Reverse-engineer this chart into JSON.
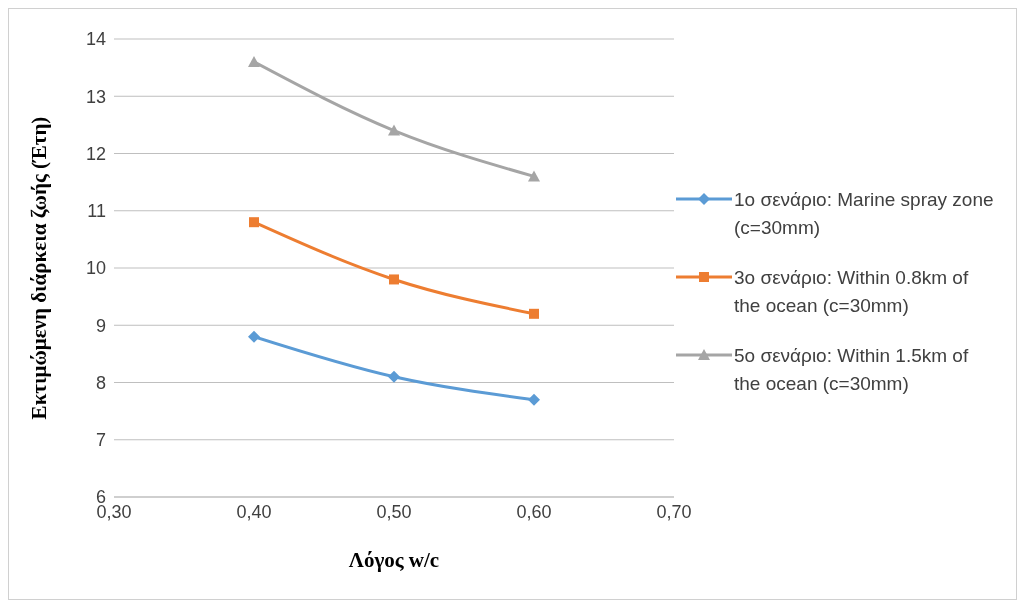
{
  "chart_data": {
    "type": "line",
    "xlabel": "Λόγος w/c",
    "ylabel": "Εκτιμώμενη διάρκεια ζωής (Έτη)",
    "x": [
      0.4,
      0.5,
      0.6
    ],
    "series": [
      {
        "name": "1ο σενάριο: Marine spray zone (c=30mm)",
        "color": "#5b9bd5",
        "marker": "diamond",
        "values": [
          8.8,
          8.1,
          7.7
        ]
      },
      {
        "name": "3ο σενάριο: Within 0.8km of the ocean (c=30mm)",
        "color": "#ed7d31",
        "marker": "square",
        "values": [
          10.8,
          9.8,
          9.2
        ]
      },
      {
        "name": "5ο σενάριο: Within 1.5km of the ocean (c=30mm)",
        "color": "#a5a5a5",
        "marker": "triangle",
        "values": [
          13.6,
          12.4,
          11.6
        ]
      }
    ],
    "xlim": [
      0.3,
      0.7
    ],
    "xticks": [
      {
        "value": 0.3,
        "label": "0,30"
      },
      {
        "value": 0.4,
        "label": "0,40"
      },
      {
        "value": 0.5,
        "label": "0,50"
      },
      {
        "value": 0.6,
        "label": "0,60"
      },
      {
        "value": 0.7,
        "label": "0,70"
      }
    ],
    "ylim": [
      6,
      14
    ],
    "yticks": [
      6,
      7,
      8,
      9,
      10,
      11,
      12,
      13,
      14
    ],
    "grid": "y",
    "legend": "right",
    "line_style": "solid"
  }
}
